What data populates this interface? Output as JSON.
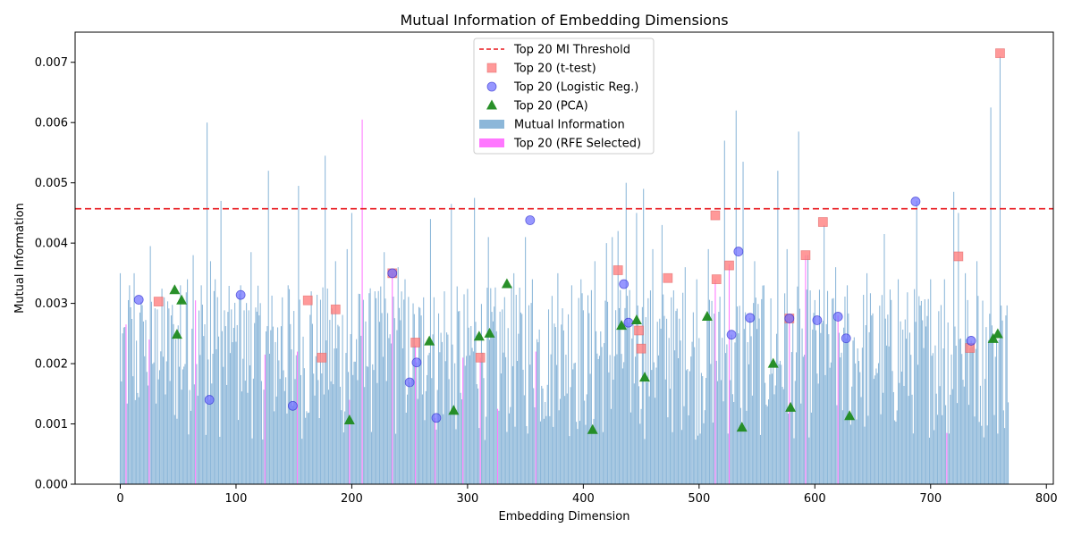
{
  "chart_data": {
    "type": "bar",
    "title": "Mutual Information of Embedding Dimensions",
    "xlabel": "Embedding Dimension",
    "ylabel": "Mutual Information",
    "xlim": [
      -39,
      806
    ],
    "ylim": [
      0,
      0.0075
    ],
    "xticks": [
      0,
      100,
      200,
      300,
      400,
      500,
      600,
      700,
      800
    ],
    "yticks": [
      0.0,
      0.001,
      0.002,
      0.003,
      0.004,
      0.005,
      0.006,
      0.007
    ],
    "ytick_labels": [
      "0.000",
      "0.001",
      "0.002",
      "0.003",
      "0.004",
      "0.005",
      "0.006",
      "0.007"
    ],
    "num_dimensions": 768,
    "legend_placement": "top-center",
    "grid": false,
    "threshold": {
      "name": "Top 20 MI Threshold",
      "value": 0.00457,
      "color": "#e8161b"
    },
    "colors": {
      "bars": "#8cb7d9",
      "rfe": "#ff77ff",
      "ttest": "#ff8080",
      "logistic": "#6f6fff",
      "pca": "#1e8a1e"
    },
    "series": [
      {
        "name": "Mutual Information",
        "peaks": [
          {
            "x": 0,
            "y": 0.0035
          },
          {
            "x": 3,
            "y": 0.0026
          },
          {
            "x": 8,
            "y": 0.0033
          },
          {
            "x": 12,
            "y": 0.0035
          },
          {
            "x": 20,
            "y": 0.0027
          },
          {
            "x": 26,
            "y": 0.00395
          },
          {
            "x": 32,
            "y": 0.0029
          },
          {
            "x": 38,
            "y": 0.0031
          },
          {
            "x": 44,
            "y": 0.0028
          },
          {
            "x": 52,
            "y": 0.0033
          },
          {
            "x": 58,
            "y": 0.0034
          },
          {
            "x": 63,
            "y": 0.0038
          },
          {
            "x": 70,
            "y": 0.0033
          },
          {
            "x": 75,
            "y": 0.006
          },
          {
            "x": 78,
            "y": 0.0037
          },
          {
            "x": 82,
            "y": 0.0034
          },
          {
            "x": 87,
            "y": 0.0047
          },
          {
            "x": 96,
            "y": 0.0029
          },
          {
            "x": 104,
            "y": 0.0033
          },
          {
            "x": 113,
            "y": 0.00385
          },
          {
            "x": 120,
            "y": 0.0028
          },
          {
            "x": 128,
            "y": 0.0052
          },
          {
            "x": 140,
            "y": 0.0031
          },
          {
            "x": 145,
            "y": 0.0033
          },
          {
            "x": 154,
            "y": 0.00495
          },
          {
            "x": 165,
            "y": 0.0032
          },
          {
            "x": 177,
            "y": 0.00545
          },
          {
            "x": 186,
            "y": 0.0037
          },
          {
            "x": 196,
            "y": 0.0039
          },
          {
            "x": 200,
            "y": 0.0045
          },
          {
            "x": 212,
            "y": 0.0027
          },
          {
            "x": 220,
            "y": 0.0032
          },
          {
            "x": 228,
            "y": 0.00385
          },
          {
            "x": 240,
            "y": 0.0036
          },
          {
            "x": 246,
            "y": 0.0034
          },
          {
            "x": 262,
            "y": 0.0031
          },
          {
            "x": 268,
            "y": 0.0044
          },
          {
            "x": 280,
            "y": 0.0032
          },
          {
            "x": 286,
            "y": 0.00465
          },
          {
            "x": 296,
            "y": 0.0031
          },
          {
            "x": 306,
            "y": 0.00475
          },
          {
            "x": 318,
            "y": 0.0041
          },
          {
            "x": 330,
            "y": 0.0029
          },
          {
            "x": 340,
            "y": 0.0035
          },
          {
            "x": 350,
            "y": 0.0041
          },
          {
            "x": 356,
            "y": 0.0034
          },
          {
            "x": 370,
            "y": 0.0029
          },
          {
            "x": 378,
            "y": 0.0035
          },
          {
            "x": 390,
            "y": 0.0033
          },
          {
            "x": 398,
            "y": 0.0034
          },
          {
            "x": 410,
            "y": 0.0037
          },
          {
            "x": 420,
            "y": 0.004
          },
          {
            "x": 425,
            "y": 0.0041
          },
          {
            "x": 430,
            "y": 0.0042
          },
          {
            "x": 437,
            "y": 0.005
          },
          {
            "x": 446,
            "y": 0.0045
          },
          {
            "x": 452,
            "y": 0.0049
          },
          {
            "x": 460,
            "y": 0.0039
          },
          {
            "x": 468,
            "y": 0.0043
          },
          {
            "x": 476,
            "y": 0.0031
          },
          {
            "x": 488,
            "y": 0.0036
          },
          {
            "x": 498,
            "y": 0.0034
          },
          {
            "x": 508,
            "y": 0.0039
          },
          {
            "x": 522,
            "y": 0.0057
          },
          {
            "x": 532,
            "y": 0.0062
          },
          {
            "x": 538,
            "y": 0.00535
          },
          {
            "x": 548,
            "y": 0.0037
          },
          {
            "x": 556,
            "y": 0.0033
          },
          {
            "x": 568,
            "y": 0.0052
          },
          {
            "x": 576,
            "y": 0.0039
          },
          {
            "x": 586,
            "y": 0.00585
          },
          {
            "x": 594,
            "y": 0.0038
          },
          {
            "x": 608,
            "y": 0.0043
          },
          {
            "x": 618,
            "y": 0.0036
          },
          {
            "x": 628,
            "y": 0.0033
          },
          {
            "x": 645,
            "y": 0.0035
          },
          {
            "x": 660,
            "y": 0.00415
          },
          {
            "x": 672,
            "y": 0.0034
          },
          {
            "x": 688,
            "y": 0.0047
          },
          {
            "x": 700,
            "y": 0.0034
          },
          {
            "x": 712,
            "y": 0.0034
          },
          {
            "x": 720,
            "y": 0.00485
          },
          {
            "x": 724,
            "y": 0.0045
          },
          {
            "x": 730,
            "y": 0.0035
          },
          {
            "x": 740,
            "y": 0.0037
          },
          {
            "x": 752,
            "y": 0.00625
          },
          {
            "x": 760,
            "y": 0.0071
          },
          {
            "x": 765,
            "y": 0.0028
          }
        ]
      },
      {
        "name": "Top 20 (RFE Selected)",
        "points": [
          {
            "x": 5,
            "y": 0.00265
          },
          {
            "x": 25,
            "y": 0.0024
          },
          {
            "x": 65,
            "y": 0.00305
          },
          {
            "x": 125,
            "y": 0.00215
          },
          {
            "x": 153,
            "y": 0.0022
          },
          {
            "x": 198,
            "y": 0.0014
          },
          {
            "x": 209,
            "y": 0.00605
          },
          {
            "x": 235,
            "y": 0.0035
          },
          {
            "x": 255,
            "y": 0.0023
          },
          {
            "x": 272,
            "y": 0.0011
          },
          {
            "x": 296,
            "y": 0.0021
          },
          {
            "x": 311,
            "y": 0.0021
          },
          {
            "x": 326,
            "y": 0.00125
          },
          {
            "x": 359,
            "y": 0.0022
          },
          {
            "x": 514,
            "y": 0.0034
          },
          {
            "x": 526,
            "y": 0.00365
          },
          {
            "x": 578,
            "y": 0.00275
          },
          {
            "x": 592,
            "y": 0.0038
          },
          {
            "x": 620,
            "y": 0.0028
          },
          {
            "x": 714,
            "y": 0.00085
          }
        ]
      },
      {
        "name": "Top 20 (t-test)",
        "points": [
          {
            "x": 33,
            "y": 0.00303
          },
          {
            "x": 162,
            "y": 0.00305
          },
          {
            "x": 174,
            "y": 0.0021
          },
          {
            "x": 186,
            "y": 0.0029
          },
          {
            "x": 235,
            "y": 0.0035
          },
          {
            "x": 255,
            "y": 0.00235
          },
          {
            "x": 311,
            "y": 0.0021
          },
          {
            "x": 430,
            "y": 0.00355
          },
          {
            "x": 448,
            "y": 0.00255
          },
          {
            "x": 450,
            "y": 0.00225
          },
          {
            "x": 473,
            "y": 0.00342
          },
          {
            "x": 514,
            "y": 0.00446
          },
          {
            "x": 515,
            "y": 0.0034
          },
          {
            "x": 526,
            "y": 0.00363
          },
          {
            "x": 578,
            "y": 0.00275
          },
          {
            "x": 592,
            "y": 0.0038
          },
          {
            "x": 607,
            "y": 0.00435
          },
          {
            "x": 724,
            "y": 0.00378
          },
          {
            "x": 734,
            "y": 0.00226
          },
          {
            "x": 760,
            "y": 0.00715
          }
        ]
      },
      {
        "name": "Top 20 (Logistic Reg.)",
        "points": [
          {
            "x": 16,
            "y": 0.00306
          },
          {
            "x": 77,
            "y": 0.0014
          },
          {
            "x": 104,
            "y": 0.00314
          },
          {
            "x": 149,
            "y": 0.0013
          },
          {
            "x": 235,
            "y": 0.0035
          },
          {
            "x": 250,
            "y": 0.00169
          },
          {
            "x": 256,
            "y": 0.00202
          },
          {
            "x": 273,
            "y": 0.0011
          },
          {
            "x": 354,
            "y": 0.00438
          },
          {
            "x": 435,
            "y": 0.00332
          },
          {
            "x": 439,
            "y": 0.00268
          },
          {
            "x": 528,
            "y": 0.00248
          },
          {
            "x": 534,
            "y": 0.00386
          },
          {
            "x": 544,
            "y": 0.00276
          },
          {
            "x": 578,
            "y": 0.00275
          },
          {
            "x": 602,
            "y": 0.00272
          },
          {
            "x": 620,
            "y": 0.00278
          },
          {
            "x": 627,
            "y": 0.00242
          },
          {
            "x": 687,
            "y": 0.00469
          },
          {
            "x": 735,
            "y": 0.00238
          }
        ]
      },
      {
        "name": "Top 20 (PCA)",
        "points": [
          {
            "x": 47,
            "y": 0.00322
          },
          {
            "x": 49,
            "y": 0.00248
          },
          {
            "x": 53,
            "y": 0.00305
          },
          {
            "x": 198,
            "y": 0.00106
          },
          {
            "x": 267,
            "y": 0.00237
          },
          {
            "x": 288,
            "y": 0.00122
          },
          {
            "x": 310,
            "y": 0.00245
          },
          {
            "x": 319,
            "y": 0.0025
          },
          {
            "x": 334,
            "y": 0.00332
          },
          {
            "x": 408,
            "y": 0.0009
          },
          {
            "x": 433,
            "y": 0.00263
          },
          {
            "x": 446,
            "y": 0.00272
          },
          {
            "x": 453,
            "y": 0.00177
          },
          {
            "x": 507,
            "y": 0.00278
          },
          {
            "x": 537,
            "y": 0.00094
          },
          {
            "x": 564,
            "y": 0.002
          },
          {
            "x": 579,
            "y": 0.00127
          },
          {
            "x": 630,
            "y": 0.00113
          },
          {
            "x": 754,
            "y": 0.00241
          },
          {
            "x": 758,
            "y": 0.00249
          }
        ]
      }
    ]
  }
}
